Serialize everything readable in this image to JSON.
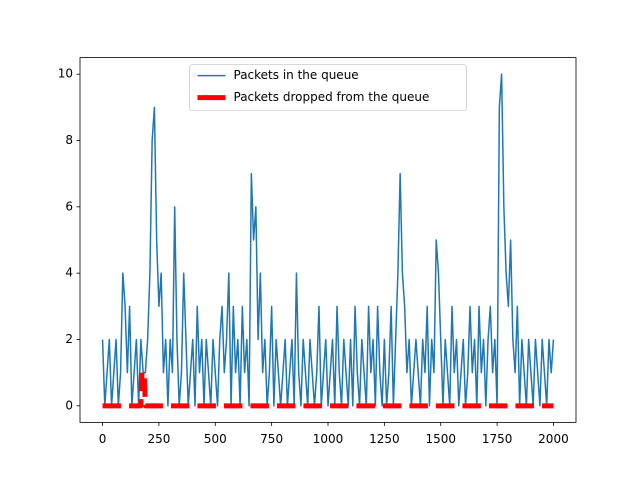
{
  "chart_data": {
    "type": "line",
    "xlim": [
      -100,
      2100
    ],
    "ylim": [
      -0.5,
      10.5
    ],
    "xticks": [
      0,
      250,
      500,
      750,
      1000,
      1250,
      1500,
      1750,
      2000
    ],
    "yticks": [
      0,
      2,
      4,
      6,
      8,
      10
    ],
    "legend": "upper center",
    "series": [
      {
        "name": "Packets in the queue",
        "color": "#1f77b4",
        "style": "solid",
        "x": [
          0,
          10,
          20,
          30,
          40,
          50,
          60,
          70,
          80,
          90,
          100,
          110,
          120,
          130,
          140,
          150,
          160,
          170,
          180,
          190,
          200,
          210,
          220,
          230,
          240,
          250,
          260,
          270,
          280,
          290,
          300,
          310,
          320,
          330,
          340,
          350,
          360,
          370,
          380,
          390,
          400,
          410,
          420,
          430,
          440,
          450,
          460,
          470,
          480,
          490,
          500,
          510,
          520,
          530,
          540,
          550,
          560,
          570,
          580,
          590,
          600,
          610,
          620,
          630,
          640,
          650,
          660,
          670,
          680,
          690,
          700,
          710,
          720,
          730,
          740,
          750,
          760,
          770,
          780,
          790,
          800,
          810,
          820,
          830,
          840,
          850,
          860,
          870,
          880,
          890,
          900,
          910,
          920,
          930,
          940,
          950,
          960,
          970,
          980,
          990,
          1000,
          1010,
          1020,
          1030,
          1040,
          1050,
          1060,
          1070,
          1080,
          1090,
          1100,
          1110,
          1120,
          1130,
          1140,
          1150,
          1160,
          1170,
          1180,
          1190,
          1200,
          1210,
          1220,
          1230,
          1240,
          1250,
          1260,
          1270,
          1280,
          1290,
          1300,
          1310,
          1320,
          1330,
          1340,
          1350,
          1360,
          1370,
          1380,
          1390,
          1400,
          1410,
          1420,
          1430,
          1440,
          1450,
          1460,
          1470,
          1480,
          1490,
          1500,
          1510,
          1520,
          1530,
          1540,
          1550,
          1560,
          1570,
          1580,
          1590,
          1600,
          1610,
          1620,
          1630,
          1640,
          1650,
          1660,
          1670,
          1680,
          1690,
          1700,
          1710,
          1720,
          1730,
          1740,
          1750,
          1760,
          1770,
          1780,
          1790,
          1800,
          1810,
          1820,
          1830,
          1840,
          1850,
          1860,
          1870,
          1880,
          1890,
          1900,
          1910,
          1920,
          1930,
          1940,
          1950,
          1960,
          1970,
          1980,
          1990,
          2000
        ],
        "values": [
          2,
          0,
          1,
          2,
          0,
          1,
          2,
          0,
          1,
          4,
          3,
          1,
          3,
          0,
          1,
          2,
          0,
          2,
          1,
          1,
          2,
          4,
          8,
          9,
          5,
          3,
          4,
          1,
          2,
          0,
          2,
          1,
          6,
          2,
          0,
          1,
          4,
          2,
          0,
          1,
          2,
          0,
          3,
          1,
          2,
          0,
          2,
          1,
          0,
          2,
          1,
          0,
          2,
          3,
          1,
          2,
          4,
          0,
          3,
          1,
          2,
          0,
          3,
          1,
          2,
          0,
          7,
          5,
          6,
          2,
          4,
          1,
          2,
          0,
          1,
          3,
          0,
          2,
          1,
          0,
          1,
          2,
          0,
          1,
          2,
          0,
          4,
          1,
          0,
          2,
          1,
          0,
          2,
          1,
          0,
          1,
          3,
          0,
          1,
          2,
          0,
          1,
          2,
          0,
          3,
          1,
          0,
          2,
          1,
          0,
          2,
          0,
          3,
          1,
          0,
          2,
          1,
          0,
          3,
          1,
          2,
          0,
          3,
          1,
          0,
          2,
          0,
          1,
          3,
          0,
          2,
          4,
          7,
          4,
          3,
          1,
          2,
          0,
          1,
          2,
          1,
          0,
          2,
          1,
          3,
          0,
          2,
          1,
          5,
          4,
          2,
          0,
          2,
          1,
          0,
          3,
          1,
          2,
          0,
          1,
          2,
          0,
          1,
          3,
          1,
          2,
          0,
          3,
          1,
          2,
          0,
          2,
          3,
          1,
          2,
          0,
          9,
          10,
          6,
          4,
          3,
          5,
          2,
          1,
          3,
          0,
          2,
          1,
          0,
          2,
          1,
          0,
          2,
          1,
          0,
          2,
          1,
          0,
          2,
          1,
          2
        ]
      },
      {
        "name": "Packets dropped from the queue",
        "color": "#ff0000",
        "style": "dashed",
        "x": [
          0,
          170,
          175,
          185,
          190,
          2000
        ],
        "values": [
          0,
          0,
          1,
          1,
          0,
          0
        ]
      }
    ]
  }
}
